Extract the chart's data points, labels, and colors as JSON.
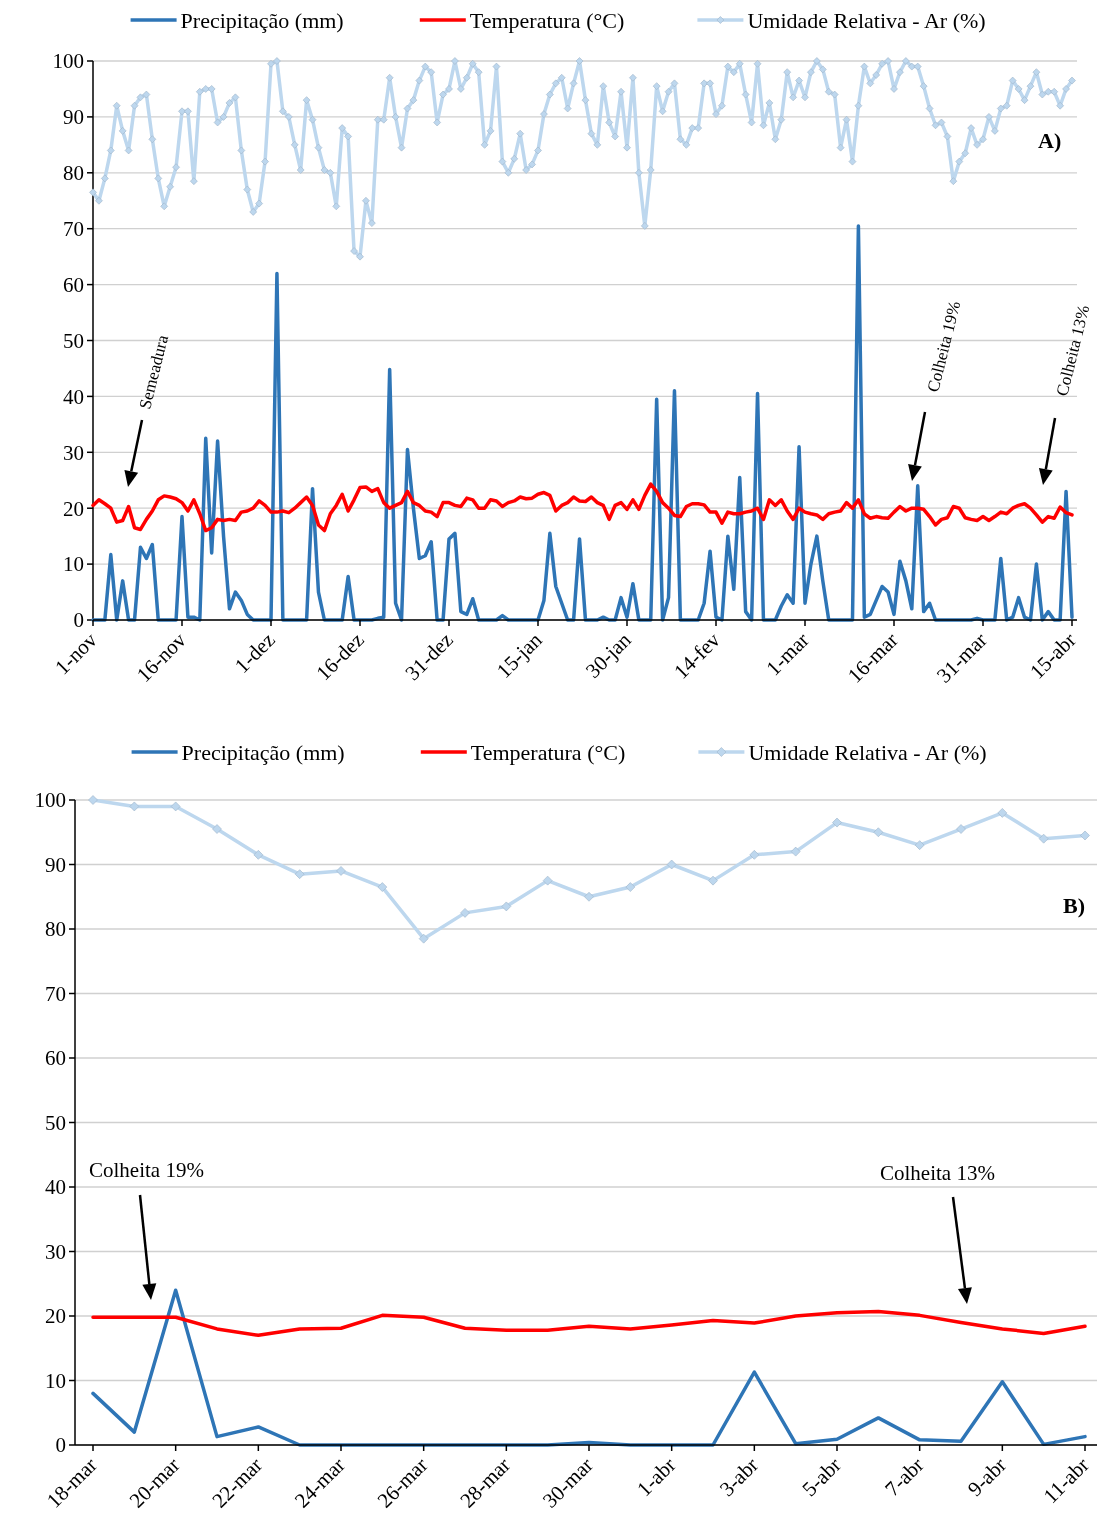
{
  "chart_data": [
    {
      "type": "line",
      "legend": "top",
      "grid": "y",
      "ylim": [
        0,
        100
      ],
      "yticks": [
        0,
        10,
        20,
        30,
        40,
        50,
        60,
        70,
        80,
        90,
        100
      ],
      "categories": [
        "1-nov",
        null,
        null,
        null,
        null,
        null,
        null,
        null,
        null,
        null,
        null,
        null,
        null,
        null,
        null,
        "16-nov",
        null,
        null,
        null,
        null,
        null,
        null,
        null,
        null,
        null,
        null,
        null,
        null,
        null,
        null,
        "1-dez",
        null,
        null,
        null,
        null,
        null,
        null,
        null,
        null,
        null,
        null,
        null,
        null,
        null,
        null,
        "16-dez",
        null,
        null,
        null,
        null,
        null,
        null,
        null,
        null,
        null,
        null,
        null,
        null,
        null,
        null,
        "31-dez",
        null,
        null,
        null,
        null,
        null,
        null,
        null,
        null,
        null,
        null,
        null,
        null,
        null,
        null,
        "15-jan",
        null,
        null,
        null,
        null,
        null,
        null,
        null,
        null,
        null,
        null,
        null,
        null,
        null,
        null,
        "30-jan",
        null,
        null,
        null,
        null,
        null,
        null,
        null,
        null,
        null,
        null,
        null,
        null,
        null,
        null,
        "14-fev",
        null,
        null,
        null,
        null,
        null,
        null,
        null,
        null,
        null,
        null,
        null,
        null,
        null,
        null,
        "1-mar",
        null,
        null,
        null,
        null,
        null,
        null,
        null,
        null,
        null,
        null,
        null,
        null,
        null,
        null,
        "16-mar",
        null,
        null,
        null,
        null,
        null,
        null,
        null,
        null,
        null,
        null,
        null,
        null,
        null,
        null,
        "31-mar",
        null,
        null,
        null,
        null,
        null,
        null,
        null,
        null,
        null,
        null,
        null,
        null,
        null,
        null,
        "15-abr"
      ],
      "series": [
        {
          "name": "Precipitação (mm)",
          "color": "#2e75b6",
          "marker": "none",
          "values": [
            0,
            0,
            0,
            11.7,
            0,
            7,
            0,
            0,
            13,
            11,
            13.5,
            0,
            0,
            0,
            0,
            18.5,
            0.5,
            0.5,
            0,
            32.5,
            12,
            32,
            15,
            2,
            5,
            3.5,
            1,
            0,
            0,
            0,
            0,
            62,
            0,
            0,
            0,
            0,
            0,
            23.5,
            5,
            0,
            0,
            0,
            0,
            7.8,
            0,
            0,
            0,
            0,
            0.3,
            0.5,
            44.8,
            3,
            0,
            30.5,
            20,
            11,
            11.5,
            14,
            0,
            0,
            14.5,
            15.5,
            1.5,
            1,
            3.8,
            0,
            0,
            0,
            0,
            0.8,
            0,
            0,
            0,
            0,
            0,
            0,
            3.5,
            15.5,
            6,
            3,
            0,
            0,
            14.5,
            0,
            0,
            0,
            0.5,
            0,
            0,
            4,
            0.5,
            6.5,
            0,
            0,
            0,
            39.5,
            0,
            4,
            41,
            0,
            0,
            0,
            0,
            3,
            12.3,
            0.5,
            0,
            15,
            5.5,
            25.5,
            1.5,
            0,
            40.5,
            0,
            0,
            0,
            2.5,
            4.5,
            3,
            31,
            3,
            10,
            15,
            7,
            0,
            0,
            0,
            0,
            0,
            70.5,
            0.5,
            1,
            3.5,
            6,
            5,
            1,
            10.5,
            7,
            2,
            24,
            1.5,
            3,
            0,
            0,
            0,
            0,
            0,
            0,
            0,
            0.3,
            0,
            0,
            0,
            11,
            0,
            0.5,
            4,
            0.5,
            0,
            10,
            0,
            1.5,
            0,
            0,
            23,
            0.5
          ]
        },
        {
          "name": "Temperatura (°C)",
          "color": "#ff0000",
          "marker": "none",
          "values": [
            20.5,
            21.5,
            20.8,
            20,
            17.5,
            17.8,
            20.3,
            16.5,
            16.2,
            18,
            19.5,
            21.5,
            22.2,
            22,
            21.7,
            21,
            19.5,
            21.5,
            19,
            16,
            16.5,
            18,
            17.8,
            18,
            17.8,
            19.3,
            19.5,
            20,
            21.3,
            20.5,
            19.3,
            19.3,
            19.5,
            19.2,
            20,
            21,
            22,
            20.5,
            17,
            16,
            19,
            20.5,
            22.5,
            19.5,
            21.5,
            23.7,
            23.8,
            23,
            23.5,
            21,
            20,
            20.5,
            21,
            23,
            21,
            20.5,
            19.5,
            19.3,
            18.5,
            21,
            21,
            20.5,
            20.3,
            21.8,
            21.5,
            20,
            20,
            21.5,
            21.3,
            20.3,
            21,
            21.3,
            22,
            21.7,
            21.8,
            22.5,
            22.8,
            22.3,
            19.5,
            20.5,
            21,
            22,
            21.3,
            21.2,
            22,
            21,
            20.5,
            18,
            20.5,
            21,
            19.8,
            21.5,
            19.8,
            22.3,
            24.3,
            23,
            21,
            20,
            18.7,
            18.5,
            20.3,
            20.8,
            20.8,
            20.6,
            19.3,
            19.3,
            17.3,
            19.3,
            19,
            19,
            19.3,
            19.5,
            20,
            18,
            21.5,
            20.5,
            21.5,
            19.5,
            18,
            20,
            19.3,
            19,
            18.8,
            18,
            19,
            19.3,
            19.5,
            21,
            20,
            21.5,
            19,
            18.2,
            18.5,
            18.3,
            18.2,
            19.3,
            20.3,
            19.5,
            20,
            20,
            19.8,
            18.5,
            17,
            18,
            18.3,
            20.3,
            20,
            18.3,
            18,
            17.8,
            18.5,
            17.8,
            18.5,
            19.3,
            19,
            20,
            20.5,
            20.8,
            20,
            18.8,
            17.5,
            18.5,
            18.2,
            20.2,
            19.2,
            18.8
          ]
        },
        {
          "name": "Umidade Relativa - Ar (%)",
          "color": "#bdd7ee",
          "marker": "diamond",
          "values": [
            76.5,
            75,
            79,
            84,
            92,
            87.5,
            84,
            92,
            93.5,
            94,
            86,
            79,
            74,
            77.5,
            81,
            91,
            91,
            78.5,
            94.5,
            95,
            95,
            89,
            90,
            92.5,
            93.5,
            84,
            77,
            73,
            74.5,
            82,
            99.5,
            100,
            91,
            90,
            85,
            80.5,
            93,
            89.5,
            84.5,
            80.5,
            80,
            74,
            88,
            86.5,
            66,
            65,
            75,
            71,
            89.5,
            89.5,
            97,
            90,
            84.5,
            91.5,
            93,
            96.5,
            99,
            98,
            89,
            94,
            95,
            100,
            95,
            97,
            99.5,
            98,
            85,
            87.5,
            99,
            82,
            80,
            82.5,
            87,
            80.5,
            81.5,
            84,
            90.5,
            94,
            96,
            97,
            91.5,
            96,
            100,
            93,
            87,
            85,
            95.5,
            89,
            86.5,
            94.5,
            84.5,
            97,
            80,
            70.5,
            80.5,
            95.5,
            91,
            94.5,
            96,
            86,
            85,
            88,
            88,
            96,
            96,
            90.5,
            92,
            99,
            98,
            99.5,
            94,
            89,
            99.5,
            88.5,
            92.5,
            86,
            89.5,
            98,
            93.5,
            96.5,
            93.5,
            98,
            100,
            98.5,
            94.5,
            94,
            84.5,
            89.5,
            82,
            92,
            99,
            96,
            97.5,
            99.5,
            100,
            95,
            98,
            100,
            99,
            99,
            95.5,
            91.5,
            88.5,
            89,
            86.5,
            78.5,
            82,
            83.5,
            88,
            85,
            86,
            90,
            87.5,
            91.5,
            92,
            96.5,
            95,
            93,
            95.5,
            98,
            94,
            94.5,
            94.5,
            92,
            95,
            96.5
          ]
        }
      ],
      "annotations": [
        "Semeadura",
        "Colheita 19%",
        "Colheita 13%",
        "A)"
      ]
    },
    {
      "type": "line",
      "legend": "top",
      "grid": "y",
      "ylim": [
        0,
        100
      ],
      "yticks": [
        0,
        10,
        20,
        30,
        40,
        50,
        60,
        70,
        80,
        90,
        100
      ],
      "categories": [
        "18-mar",
        null,
        "20-mar",
        null,
        "22-mar",
        null,
        "24-mar",
        null,
        "26-mar",
        null,
        "28-mar",
        null,
        "30-mar",
        null,
        "1-abr",
        null,
        "3-abr",
        null,
        "5-abr",
        null,
        "7-abr",
        null,
        "9-abr",
        null,
        "11-abr"
      ],
      "series": [
        {
          "name": "Precipitação (mm)",
          "color": "#2e75b6",
          "marker": "none",
          "values": [
            8,
            2,
            24,
            1.3,
            2.8,
            0,
            0,
            0,
            0,
            0,
            0,
            0,
            0.4,
            0,
            0,
            0,
            11.3,
            0.2,
            0.9,
            4.2,
            0.8,
            0.6,
            9.8,
            0.1,
            1.3
          ]
        },
        {
          "name": "Temperatura (°C)",
          "color": "#ff0000",
          "marker": "none",
          "values": [
            19.8,
            19.8,
            19.8,
            18,
            17,
            18,
            18.1,
            20.1,
            19.8,
            18.1,
            17.8,
            17.8,
            18.4,
            18,
            18.6,
            19.3,
            18.9,
            20,
            20.5,
            20.7,
            20.1,
            19,
            18,
            17.3,
            18.4
          ]
        },
        {
          "name": "Umidade Relativa - Ar (%)",
          "color": "#bdd7ee",
          "marker": "diamond",
          "values": [
            100,
            99,
            99,
            95.5,
            91.5,
            88.5,
            89,
            86.5,
            78.5,
            82.5,
            83.5,
            87.5,
            85,
            86.5,
            90,
            87.5,
            91.5,
            92,
            96.5,
            95,
            93,
            95.5,
            98,
            94,
            94.5
          ]
        }
      ],
      "annotations": [
        "Colheita 19%",
        "Colheita 13%",
        "B)"
      ]
    }
  ]
}
